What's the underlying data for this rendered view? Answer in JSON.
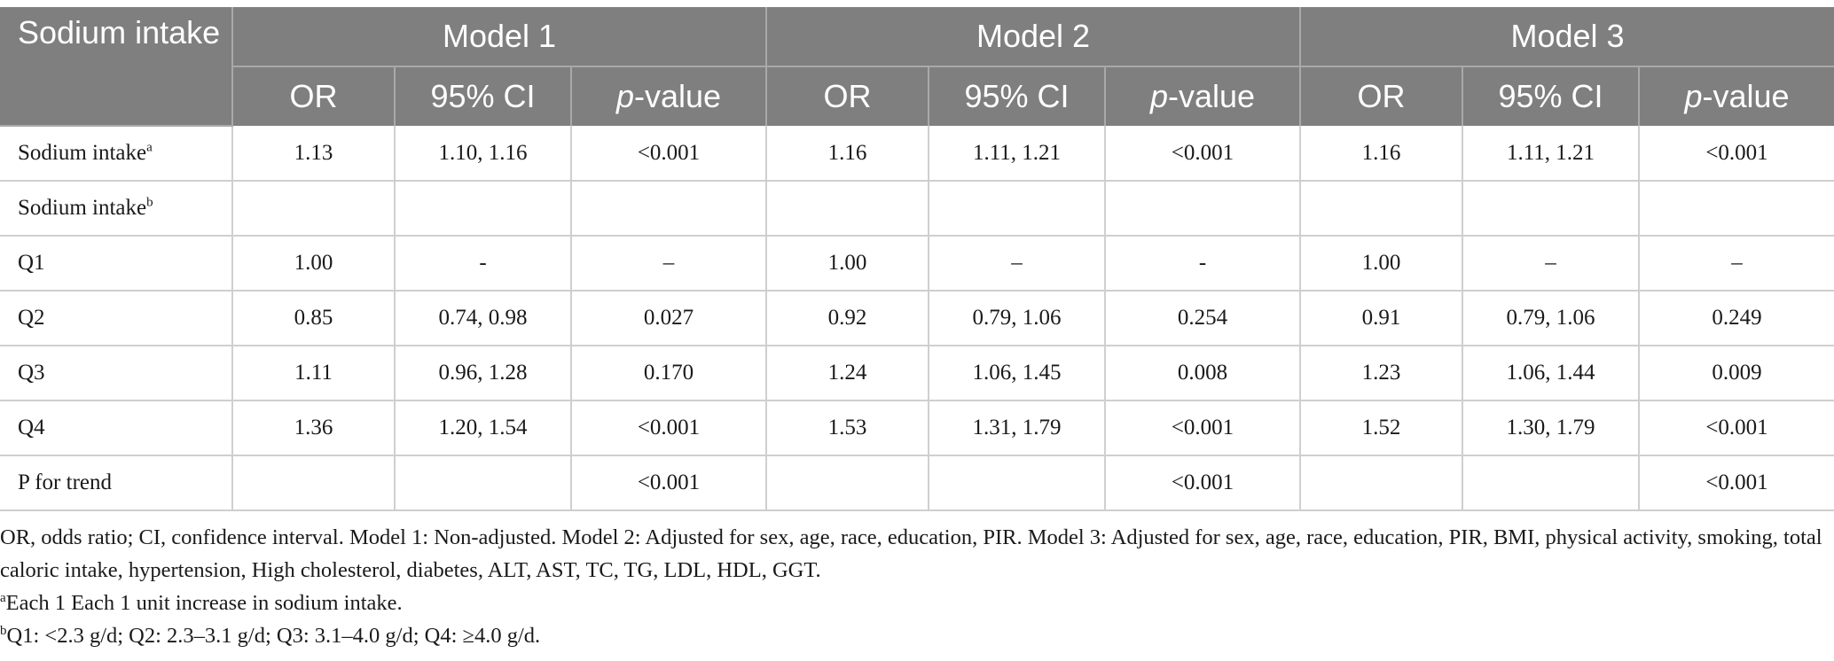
{
  "header": {
    "row_label": "Sodium intake",
    "models": [
      "Model 1",
      "Model 2",
      "Model 3"
    ],
    "sub": {
      "or": "OR",
      "ci": "95% CI",
      "p_italic": "p",
      "p_suffix": "-value"
    }
  },
  "rows": [
    {
      "label": "Sodium intake",
      "sup": "a",
      "cells": [
        "1.13",
        "1.10, 1.16",
        "<0.001",
        "1.16",
        "1.11, 1.21",
        "<0.001",
        "1.16",
        "1.11, 1.21",
        "<0.001"
      ]
    },
    {
      "label": "Sodium intake",
      "sup": "b",
      "cells": [
        "",
        "",
        "",
        "",
        "",
        "",
        "",
        "",
        ""
      ]
    },
    {
      "label": "Q1",
      "sup": "",
      "cells": [
        "1.00",
        "-",
        "–",
        "1.00",
        "–",
        "-",
        "1.00",
        "–",
        "–"
      ]
    },
    {
      "label": "Q2",
      "sup": "",
      "cells": [
        "0.85",
        "0.74, 0.98",
        "0.027",
        "0.92",
        "0.79, 1.06",
        "0.254",
        "0.91",
        "0.79, 1.06",
        "0.249"
      ]
    },
    {
      "label": "Q3",
      "sup": "",
      "cells": [
        "1.11",
        "0.96, 1.28",
        "0.170",
        "1.24",
        "1.06, 1.45",
        "0.008",
        "1.23",
        "1.06, 1.44",
        "0.009"
      ]
    },
    {
      "label": "Q4",
      "sup": "",
      "cells": [
        "1.36",
        "1.20, 1.54",
        "<0.001",
        "1.53",
        "1.31, 1.79",
        "<0.001",
        "1.52",
        "1.30, 1.79",
        "<0.001"
      ]
    },
    {
      "label": "P for trend",
      "sup": "",
      "cells": [
        "",
        "",
        "<0.001",
        "",
        "",
        "<0.001",
        "",
        "",
        "<0.001"
      ]
    }
  ],
  "notes": {
    "abbrev": "OR, odds ratio; CI, confidence interval. Model 1: Non-adjusted. Model 2: Adjusted for sex, age, race, education, PIR. Model 3: Adjusted for sex, age, race, education, PIR, BMI, physical activity, smoking, total caloric intake, hypertension, High cholesterol, diabetes, ALT, AST, TC, TG, LDL, HDL, GGT.",
    "a_mark": "a",
    "a_text": "Each 1 Each 1 unit increase in sodium intake.",
    "b_mark": "b",
    "b_text": "Q1: <2.3 g/d; Q2: 2.3–3.1 g/d; Q3: 3.1–4.0 g/d; Q4: ≥4.0 g/d."
  }
}
